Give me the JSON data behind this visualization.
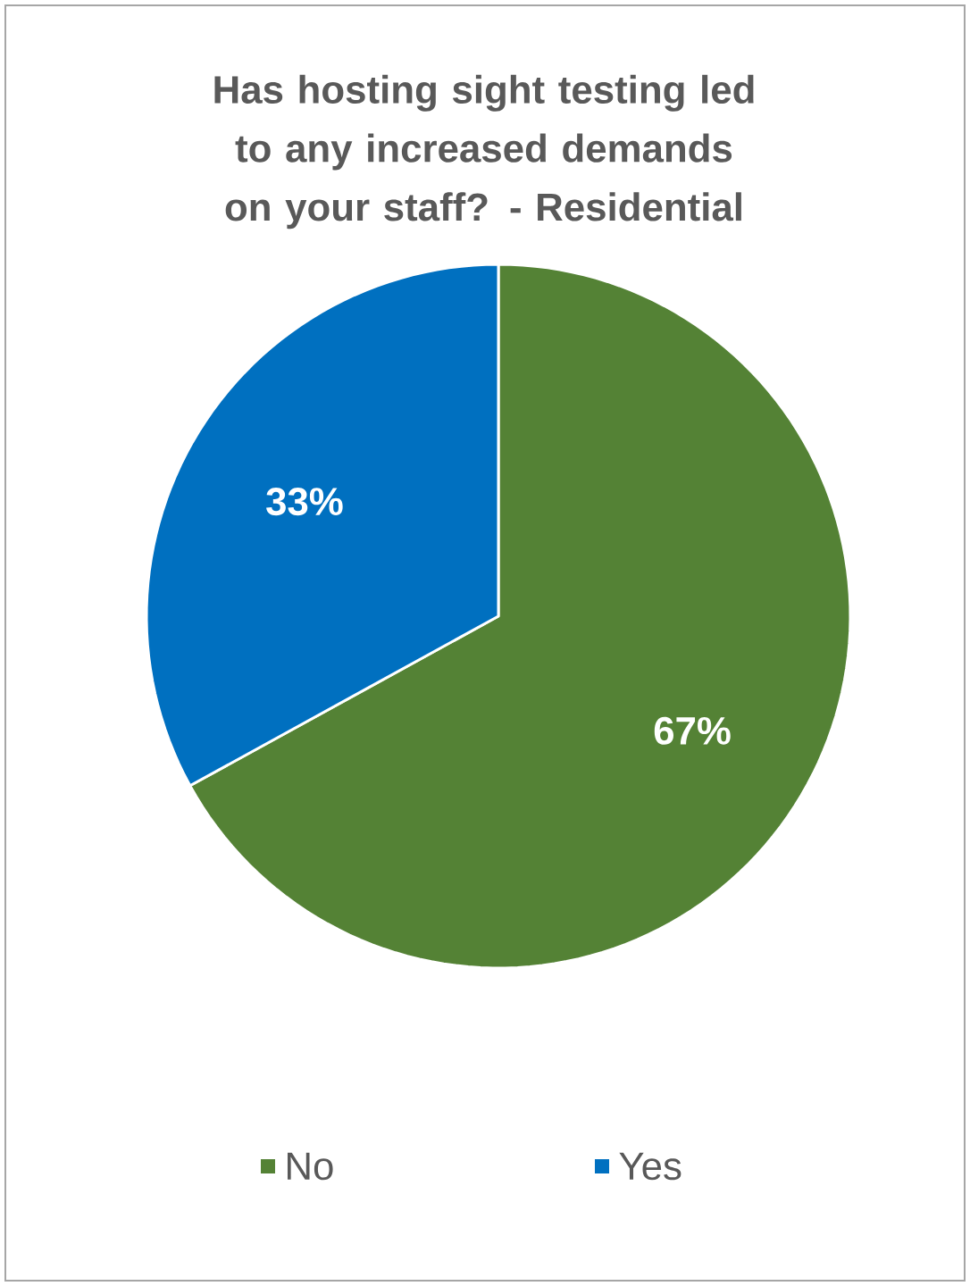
{
  "chart_data": {
    "type": "pie",
    "title": "Has hosting sight testing led to any increased demands on your staff? - Residential",
    "categories": [
      "No",
      "Yes"
    ],
    "values": [
      67,
      33
    ],
    "colors": [
      "#548235",
      "#0070c0"
    ],
    "value_labels": [
      "67%",
      "33%"
    ],
    "legend": "bottom"
  }
}
